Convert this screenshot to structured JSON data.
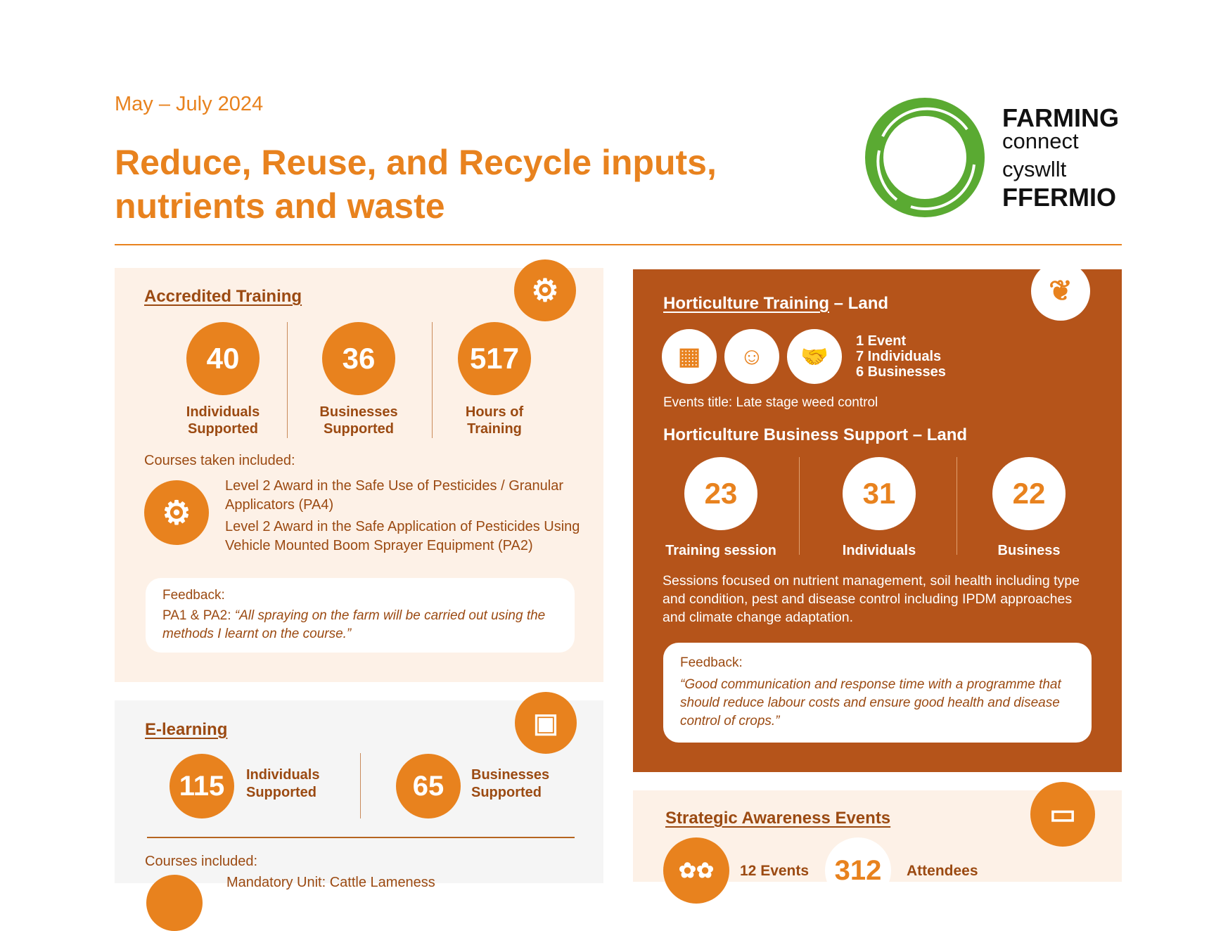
{
  "header": {
    "date": "May – July 2024",
    "title_line1": "Reduce, Reuse, and Recycle inputs,",
    "title_line2": "nutrients and waste",
    "logo": {
      "line1": "FARMING",
      "line2": "connect",
      "line3": "cyswllt",
      "line4": "FFERMIO",
      "color": "#5AAA32"
    }
  },
  "colors": {
    "orange": "#E8821E",
    "brown": "#B5541A",
    "text": "#9B4A12",
    "cream": "#FDF1E7",
    "grey": "#F5F5F5"
  },
  "accredited": {
    "title": "Accredited Training",
    "icon": "gear-check-icon",
    "stats": [
      {
        "value": "40",
        "l1": "Individuals",
        "l2": "Supported"
      },
      {
        "value": "36",
        "l1": "Businesses",
        "l2": "Supported"
      },
      {
        "value": "517",
        "l1": "Hours of",
        "l2": "Training"
      }
    ],
    "courses_label": "Courses taken included:",
    "courses": [
      "Level 2 Award in the Safe Use of Pesticides / Granular",
      "Applicators (PA4)",
      "Level 2 Award in the Safe Application of Pesticides Using",
      "Vehicle Mounted Boom Sprayer Equipment (PA2)"
    ],
    "feedback_label": "Feedback:",
    "feedback_prefix": "PA1 & PA2: ",
    "feedback_l1": "“All spraying on the farm will be carried out using the",
    "feedback_l2": "methods I learnt on the course.”"
  },
  "elearning": {
    "title": "E-learning",
    "icon": "certificate-screen-icon",
    "stats": [
      {
        "value": "115",
        "l1": "Individuals",
        "l2": "Supported"
      },
      {
        "value": "65",
        "l1": "Businesses",
        "l2": "Supported"
      }
    ],
    "courses_label": "Courses included:",
    "course1": "Mandatory Unit: Cattle Lameness"
  },
  "horti_training": {
    "title": "Horticulture Training",
    "title_suffix": " – Land",
    "icon": "leaf-icon",
    "icons": [
      "calendar-icon",
      "head-icon",
      "handshake-icon"
    ],
    "l1": "1 Event",
    "l2": "7 Individuals",
    "l3": "6 Businesses",
    "events_title_label": "Events title:",
    "events_title": " Late stage weed control"
  },
  "horti_business": {
    "title": "Horticulture Business Support – Land",
    "stats": [
      {
        "value": "23",
        "label": "Training session"
      },
      {
        "value": "31",
        "label": "Individuals"
      },
      {
        "value": "22",
        "label": "Business"
      }
    ],
    "para_l1": "Sessions focused on nutrient management, soil health including type",
    "para_l2": "and condition, pest and disease control including IPDM approaches",
    "para_l3": "and climate change adaptation.",
    "feedback_label": "Feedback:",
    "feedback_l1": "“Good communication and response time with a programme that",
    "feedback_l2": "should reduce labour costs and ensure good health and disease",
    "feedback_l3": "control of crops.”"
  },
  "strategic": {
    "title": "Strategic Awareness Events",
    "icon": "certificate-icon",
    "events": "12 Events",
    "attendees_value": "312",
    "attendees_label": "Attendees"
  }
}
